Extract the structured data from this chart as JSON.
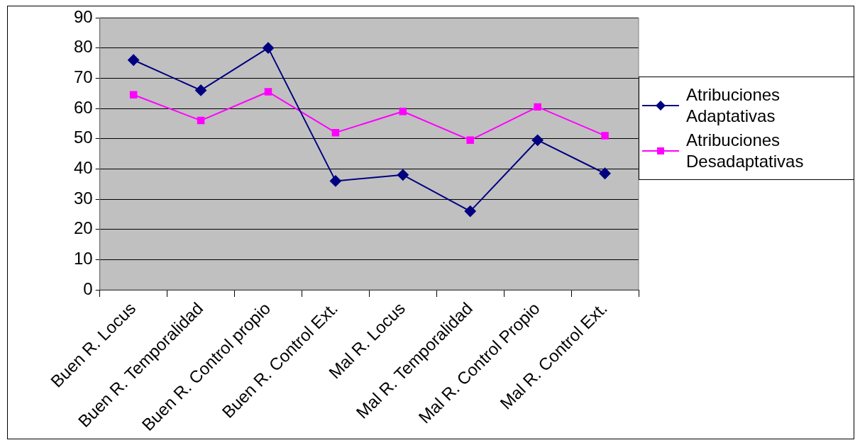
{
  "chart_data": {
    "type": "line",
    "categories": [
      "Buen R. Locus",
      "Buen R. Temporalidad",
      "Buen R. Control propio",
      "Buen R. Control Ext.",
      "Mal R. Locus",
      "Mal R. Temporalidad",
      "Mal R. Control Propio",
      "Mal R. Control Ext."
    ],
    "series": [
      {
        "name": "Atribuciones Adaptativas",
        "color": "#000080",
        "marker": "diamond",
        "values": [
          76,
          66,
          80,
          36,
          38,
          26,
          49.5,
          38.5
        ]
      },
      {
        "name": "Atribuciones Desadaptativas",
        "color": "#ff00ff",
        "marker": "square",
        "values": [
          64.5,
          56,
          65.5,
          52,
          59,
          49.5,
          60.5,
          51
        ]
      }
    ],
    "ylim": [
      0,
      90
    ],
    "yticks": [
      0,
      10,
      20,
      30,
      40,
      50,
      60,
      70,
      80,
      90
    ],
    "grid": "y",
    "legend": "right"
  }
}
